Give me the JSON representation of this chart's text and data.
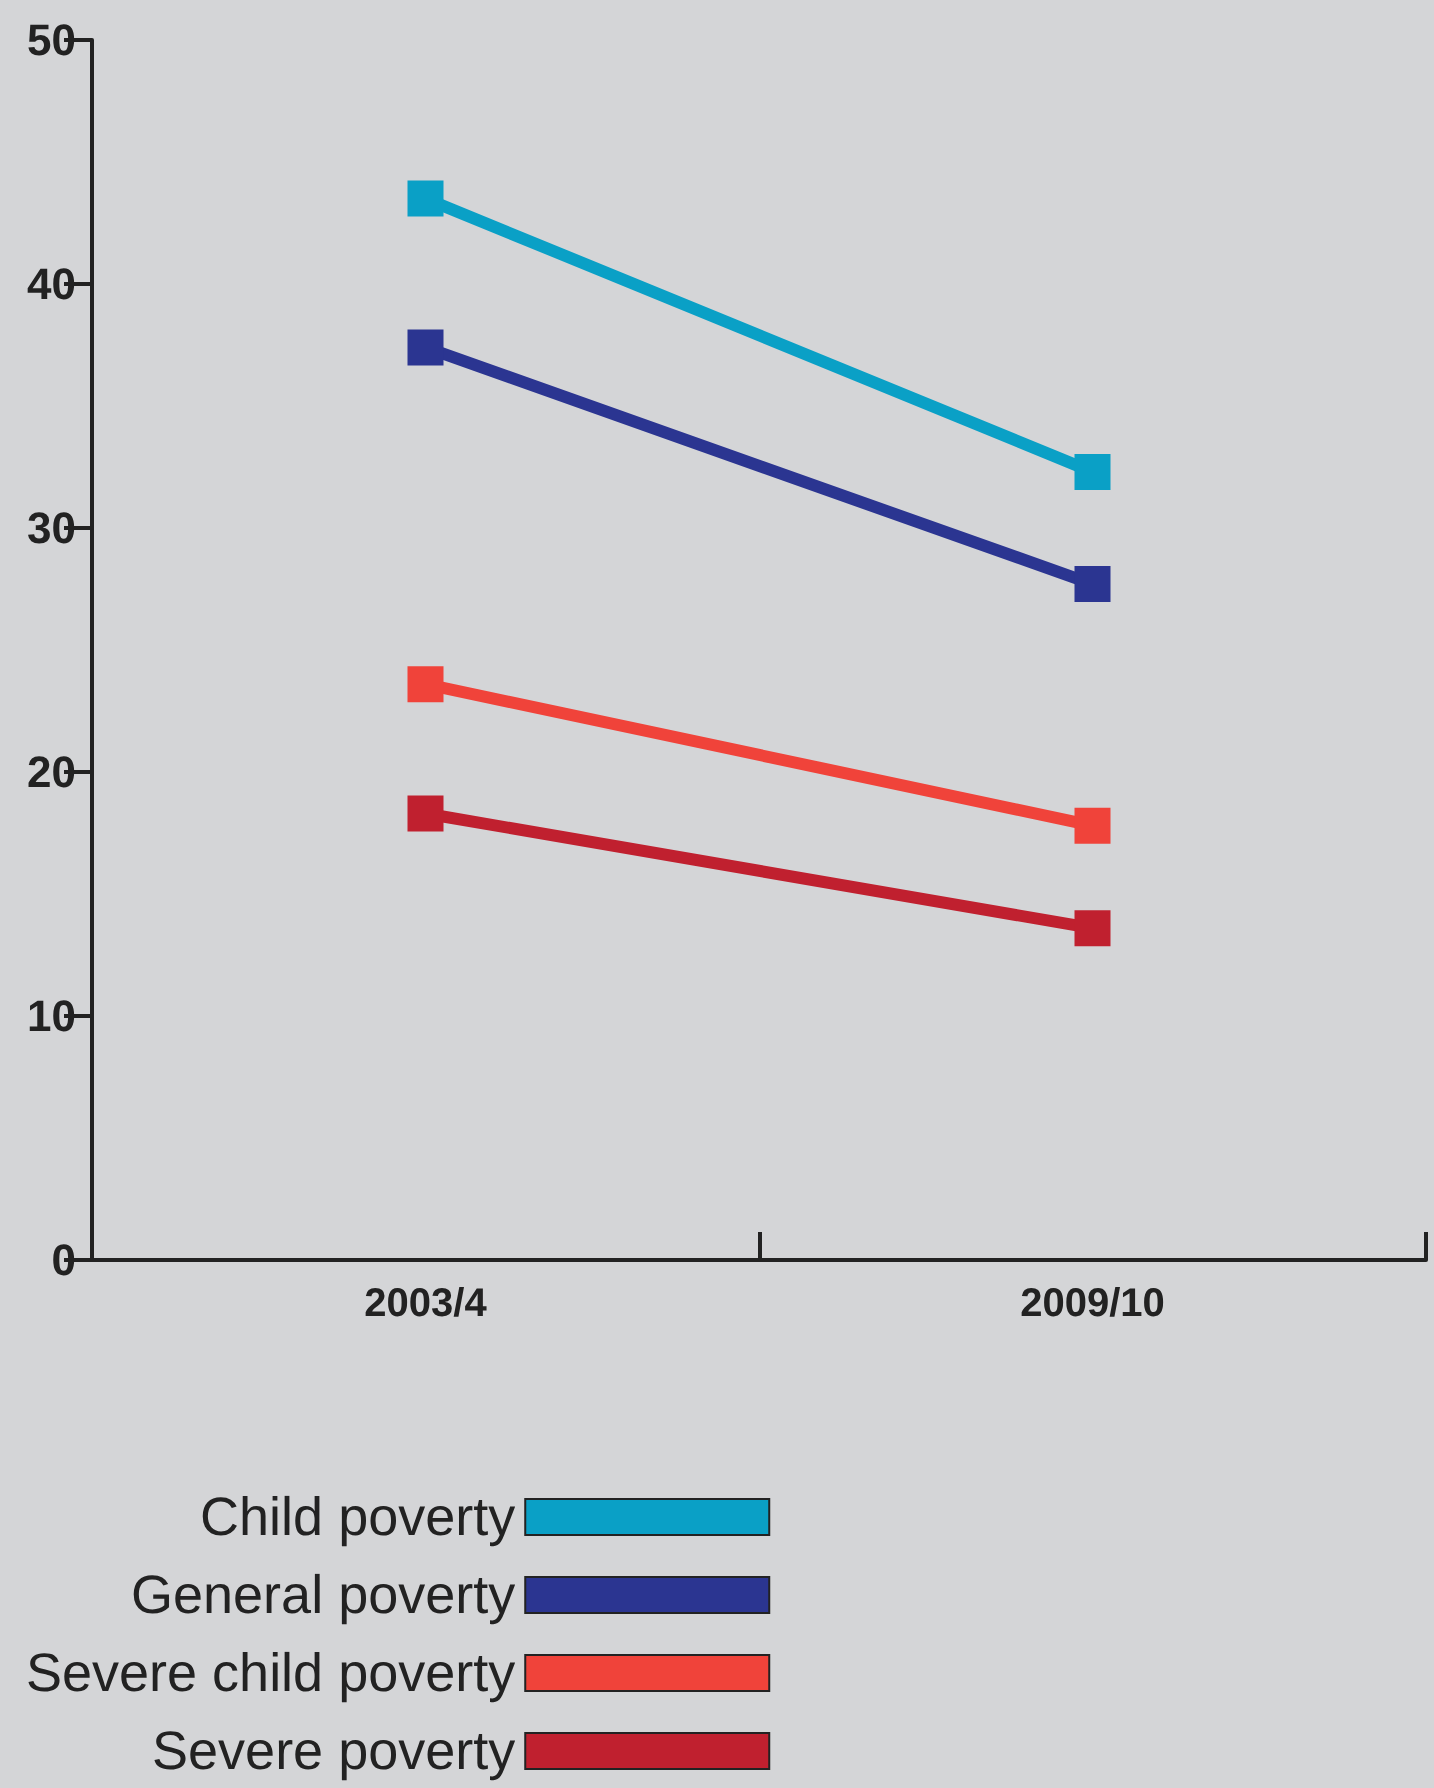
{
  "chart_data": {
    "type": "line",
    "categories": [
      "2003/4",
      "2009/10"
    ],
    "series": [
      {
        "name": "Child poverty",
        "color": "#0aa0c6",
        "values": [
          43.5,
          32.3
        ]
      },
      {
        "name": "General poverty",
        "color": "#2b3591",
        "values": [
          37.4,
          27.7
        ]
      },
      {
        "name": "Severe child poverty",
        "color": "#f0433a",
        "values": [
          23.6,
          17.8
        ]
      },
      {
        "name": "Severe poverty",
        "color": "#c0202f",
        "values": [
          18.3,
          13.6
        ]
      }
    ],
    "ylim": [
      0,
      50
    ],
    "yticks": [
      0,
      10,
      20,
      30,
      40,
      50
    ],
    "grid": false,
    "legend": "bottom left",
    "marker": "square",
    "line_style": "solid"
  }
}
